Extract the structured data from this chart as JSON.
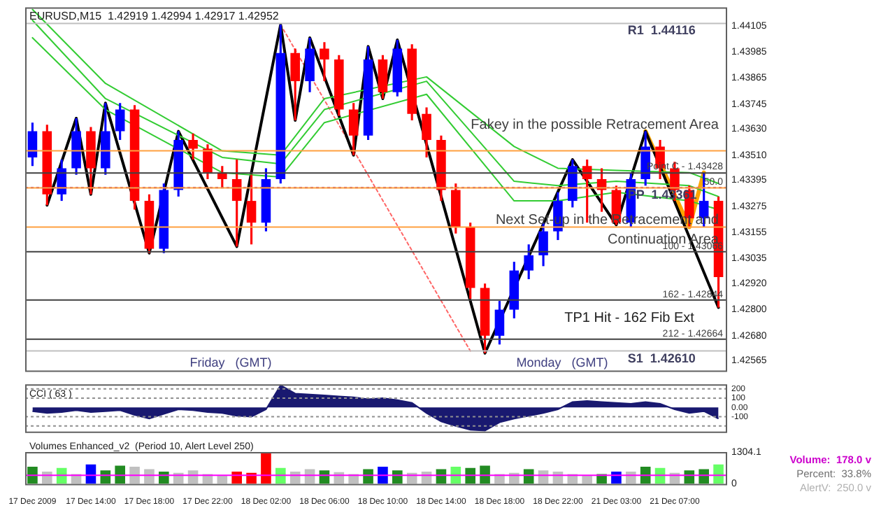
{
  "chart_data": [
    {
      "type": "candlestick",
      "title": "EURUSD,M15  1.42919 1.42994 1.42917 1.42952",
      "categories": [
        null,
        null,
        null,
        null,
        null,
        null,
        null,
        null,
        null,
        null,
        null,
        null,
        null,
        null,
        null,
        null,
        null,
        null,
        null,
        null,
        null,
        null,
        null,
        null,
        null,
        null,
        null,
        null,
        null,
        null,
        null,
        null,
        null,
        null,
        null,
        null,
        null,
        null,
        null,
        null,
        null,
        null,
        null,
        null,
        null,
        null,
        null,
        null
      ],
      "ohlc": [
        [
          1.435,
          1.4366,
          1.4346,
          1.4362
        ],
        [
          1.4362,
          1.4365,
          1.4328,
          1.4333
        ],
        [
          1.4333,
          1.4349,
          1.433,
          1.4345
        ],
        [
          1.4345,
          1.4368,
          1.4342,
          1.4362
        ],
        [
          1.4362,
          1.4364,
          1.4333,
          1.4345
        ],
        [
          1.4345,
          1.4375,
          1.4342,
          1.4362
        ],
        [
          1.4362,
          1.4375,
          1.4358,
          1.4372
        ],
        [
          1.4372,
          1.4374,
          1.4326,
          1.433
        ],
        [
          1.433,
          1.4333,
          1.4306,
          1.4308
        ],
        [
          1.4308,
          1.4338,
          1.4306,
          1.4335
        ],
        [
          1.4335,
          1.4362,
          1.4332,
          1.4358
        ],
        [
          1.4358,
          1.4361,
          1.4349,
          1.4354
        ],
        [
          1.4354,
          1.4356,
          1.434,
          1.4343
        ],
        [
          1.4343,
          1.4346,
          1.4336,
          1.434
        ],
        [
          1.434,
          1.4349,
          1.4309,
          1.433
        ],
        [
          1.433,
          1.4342,
          1.431,
          1.432
        ],
        [
          1.432,
          1.4345,
          1.4316,
          1.434
        ],
        [
          1.434,
          1.4411,
          1.4338,
          1.4398
        ],
        [
          1.4398,
          1.44,
          1.4367,
          1.4385
        ],
        [
          1.4385,
          1.4405,
          1.438,
          1.44
        ],
        [
          1.44,
          1.4403,
          1.4385,
          1.4395
        ],
        [
          1.4395,
          1.4397,
          1.4369,
          1.4372
        ],
        [
          1.4372,
          1.4375,
          1.4351,
          1.436
        ],
        [
          1.436,
          1.4401,
          1.4358,
          1.4395
        ],
        [
          1.4395,
          1.4397,
          1.4377,
          1.438
        ],
        [
          1.438,
          1.4404,
          1.4378,
          1.44
        ],
        [
          1.44,
          1.4402,
          1.4367,
          1.437
        ],
        [
          1.437,
          1.4373,
          1.435,
          1.4358
        ],
        [
          1.4358,
          1.436,
          1.433,
          1.4335
        ],
        [
          1.4335,
          1.4338,
          1.4315,
          1.4318
        ],
        [
          1.4318,
          1.432,
          1.4285,
          1.429
        ],
        [
          1.429,
          1.4292,
          1.426,
          1.4268
        ],
        [
          1.4268,
          1.4284,
          1.4264,
          1.428
        ],
        [
          1.428,
          1.4302,
          1.4276,
          1.4298
        ],
        [
          1.4298,
          1.431,
          1.4294,
          1.4305
        ],
        [
          1.4305,
          1.432,
          1.43,
          1.4316
        ],
        [
          1.4316,
          1.4334,
          1.4312,
          1.433
        ],
        [
          1.433,
          1.4349,
          1.4327,
          1.4346
        ],
        [
          1.4346,
          1.4349,
          1.432,
          1.434
        ],
        [
          1.434,
          1.4345,
          1.4325,
          1.4335
        ],
        [
          1.4335,
          1.4337,
          1.4319,
          1.432
        ],
        [
          1.432,
          1.4343,
          1.4318,
          1.434
        ],
        [
          1.434,
          1.4362,
          1.4337,
          1.4355
        ],
        [
          1.4355,
          1.4358,
          1.434,
          1.4345
        ],
        [
          1.4345,
          1.4348,
          1.433,
          1.4335
        ],
        [
          1.4335,
          1.4337,
          1.4318,
          1.4322
        ],
        [
          1.4322,
          1.4343,
          1.4318,
          1.433
        ],
        [
          1.433,
          1.4332,
          1.4281,
          1.4295
        ]
      ],
      "colors": [
        "#0000ff",
        "#ff0000",
        "#0000ff",
        "#0000ff",
        "#ff0000",
        "#0000ff",
        "#0000ff",
        "#ff0000",
        "#ff0000",
        "#0000ff",
        "#0000ff",
        "#ff0000",
        "#ff0000",
        "#ff0000",
        "#ff0000",
        "#ff0000",
        "#0000ff",
        "#0000ff",
        "#ff0000",
        "#0000ff",
        "#ff0000",
        "#ff0000",
        "#ff0000",
        "#0000ff",
        "#ff0000",
        "#0000ff",
        "#ff0000",
        "#ff0000",
        "#ff0000",
        "#ff0000",
        "#ff0000",
        "#ff0000",
        "#0000ff",
        "#0000ff",
        "#0000ff",
        "#0000ff",
        "#0000ff",
        "#0000ff",
        "#ff0000",
        "#ff0000",
        "#ff0000",
        "#0000ff",
        "#0000ff",
        "#ff0000",
        "#ff0000",
        "#ff0000",
        "#0000ff",
        "#ff0000"
      ],
      "series": [
        {
          "type": "line",
          "color": "#33cc33",
          "values": [
            1.4418,
            null,
            null,
            null,
            null,
            1.4384,
            null,
            null,
            null,
            null,
            null,
            null,
            null,
            1.4353,
            null,
            null,
            null,
            1.4351,
            null,
            null,
            1.4377,
            null,
            null,
            null,
            null,
            null,
            null,
            1.4387,
            null,
            null,
            null,
            null,
            null,
            1.4355,
            null,
            null,
            1.4345,
            null,
            null,
            null,
            1.4344,
            null,
            null,
            null,
            null,
            1.4343,
            null,
            1.4338
          ]
        },
        {
          "type": "line",
          "color": "#33cc33",
          "values": [
            1.4413,
            null,
            null,
            null,
            null,
            1.4377,
            null,
            null,
            null,
            null,
            null,
            null,
            null,
            1.435,
            null,
            null,
            null,
            1.4347,
            null,
            null,
            1.4372,
            null,
            null,
            null,
            null,
            null,
            null,
            1.4385,
            null,
            null,
            null,
            null,
            null,
            1.4339,
            null,
            null,
            1.4337,
            null,
            null,
            null,
            1.4339,
            null,
            null,
            null,
            null,
            1.4337,
            null,
            1.4332
          ]
        },
        {
          "type": "line",
          "color": "#33cc33",
          "values": [
            1.4405,
            null,
            null,
            null,
            null,
            1.4372,
            null,
            null,
            null,
            null,
            null,
            null,
            null,
            1.4343,
            null,
            null,
            null,
            1.4341,
            null,
            null,
            1.4366,
            null,
            null,
            null,
            null,
            null,
            null,
            1.4379,
            null,
            null,
            null,
            null,
            null,
            1.433,
            null,
            null,
            1.433,
            null,
            null,
            null,
            1.4334,
            null,
            null,
            null,
            null,
            1.433,
            null,
            1.4326
          ]
        },
        {
          "type": "line",
          "color": "#000000",
          "values": [
            null,
            1.4328,
            null,
            1.4368,
            1.4333,
            1.4375,
            null,
            null,
            1.4306,
            null,
            1.4362,
            null,
            null,
            null,
            1.4309,
            null,
            null,
            1.4411,
            1.4367,
            1.4405,
            null,
            null,
            1.4351,
            1.4401,
            1.4377,
            1.4404,
            null,
            null,
            null,
            null,
            null,
            1.426,
            null,
            null,
            null,
            null,
            null,
            1.4349,
            null,
            null,
            1.4319,
            null,
            1.4362,
            null,
            null,
            null,
            null,
            1.4281
          ]
        },
        {
          "type": "line",
          "color": "#ffa500",
          "values": [
            null,
            null,
            null,
            null,
            null,
            null,
            null,
            null,
            null,
            null,
            null,
            null,
            null,
            null,
            null,
            null,
            null,
            null,
            null,
            null,
            null,
            null,
            null,
            null,
            null,
            null,
            null,
            null,
            null,
            null,
            null,
            null,
            null,
            null,
            null,
            null,
            null,
            null,
            null,
            null,
            null,
            null,
            1.4362,
            null,
            null,
            1.4318,
            1.4343,
            null
          ]
        },
        {
          "type": "line",
          "color": "#ff6666",
          "line_style": "dotted",
          "values": [
            null,
            null,
            null,
            null,
            null,
            null,
            null,
            null,
            null,
            null,
            null,
            null,
            null,
            null,
            null,
            null,
            null,
            1.4411,
            null,
            null,
            null,
            null,
            null,
            null,
            null,
            null,
            null,
            null,
            null,
            null,
            1.4261,
            null,
            null,
            null,
            null,
            null,
            null,
            null,
            null,
            null,
            null,
            null,
            null,
            null,
            null,
            null,
            null,
            null
          ]
        }
      ],
      "ylim": [
        1.4252,
        1.4419
      ],
      "yticks": [
        1.44105,
        1.43985,
        1.43865,
        1.43745,
        {
          "value": 1.4363,
          "label": "1.43630"
        },
        {
          "value": 1.4351,
          "label": "1.43510"
        },
        1.43395,
        1.43275,
        1.43155,
        1.43035,
        {
          "value": 1.4292,
          "label": "1.42920"
        },
        {
          "value": 1.428,
          "label": "1.42800"
        },
        {
          "value": 1.4268,
          "label": "1.42680"
        },
        1.42565
      ],
      "tick_labels": "y",
      "ref_lines": [
        {
          "axis": "y",
          "value": 1.44116,
          "label": "R1  1.44116",
          "color": "#c0c0c0"
        },
        {
          "axis": "y",
          "value": 1.4261,
          "label": "S1  1.42610",
          "color": "#c0c0c0"
        },
        {
          "axis": "y",
          "value": 1.43361,
          "label": "PP  1.43361",
          "color": "#800080",
          "line_style": "dotted"
        },
        {
          "axis": "y",
          "value": 1.43428,
          "label": "Point C - 1.43428",
          "color": "#404040"
        },
        {
          "axis": "y",
          "value": 1.43066,
          "color": "#404040"
        },
        {
          "axis": "y",
          "value": 1.42844,
          "color": "#404040"
        },
        {
          "axis": "y",
          "value": 1.42664,
          "color": "#404040"
        },
        {
          "axis": "y",
          "value": 1.4353,
          "color": "#ffa040"
        },
        {
          "axis": "y",
          "value": 1.4336,
          "color": "#ffa040"
        },
        {
          "axis": "y",
          "value": 1.4318,
          "color": "#ffa040"
        }
      ],
      "annotations": [
        "Fakey in the possible Retracement Area",
        "Next Set-up in the Retracement and Continuation Area",
        "TP1 Hit - 162 Fib Ext",
        "Friday",
        "(GMT)",
        "Monday",
        "(GMT)",
        {
          "text": "100 - 1.43066",
          "y": 1.43066
        },
        {
          "text": "162 - 1.42844",
          "y": 1.42844
        },
        {
          "text": "212 - 1.42664",
          "y": 1.42664
        },
        {
          "text": "50.0",
          "y": 1.4336
        }
      ]
    },
    {
      "type": "area",
      "title": "CCI ( 63 )",
      "categories": [
        null,
        null,
        null,
        null,
        null,
        null,
        null,
        null,
        null,
        null,
        null,
        null,
        null,
        null,
        null,
        null,
        null,
        null,
        null,
        null,
        null,
        null,
        null,
        null,
        null,
        null,
        null,
        null,
        null,
        null,
        null,
        null,
        null,
        null,
        null,
        null,
        null,
        null,
        null,
        null,
        null,
        null,
        null,
        null,
        null,
        null,
        null,
        null
      ],
      "values": [
        -40,
        -60,
        -50,
        -30,
        -50,
        -40,
        -30,
        -80,
        -120,
        -70,
        -20,
        -30,
        -50,
        -60,
        -90,
        -100,
        -20,
        240,
        150,
        140,
        130,
        120,
        110,
        90,
        100,
        80,
        50,
        -60,
        -150,
        -200,
        -240,
        -250,
        -160,
        -120,
        -90,
        -60,
        -20,
        60,
        70,
        60,
        50,
        40,
        60,
        40,
        -20,
        -60,
        -40,
        -120
      ],
      "color": "#191970",
      "ylim": [
        -260,
        250
      ],
      "yticks": [
        200,
        100,
        {
          "value": 0,
          "label": "0.00"
        },
        -100
      ],
      "tick_labels": "y",
      "ref_lines": [
        {
          "axis": "y",
          "value": 200,
          "color": "#909090",
          "line_style": "dotted"
        },
        {
          "axis": "y",
          "value": 100,
          "color": "#909090",
          "line_style": "dotted"
        },
        {
          "axis": "y",
          "value": -100,
          "color": "#909090",
          "line_style": "dotted"
        },
        {
          "axis": "y",
          "value": -200,
          "color": "#909090",
          "line_style": "dotted"
        }
      ]
    },
    {
      "type": "bar",
      "title": "Volumes Enhanced_v2  (Period 10, Alert Level 250)",
      "categories": [
        "17 Dec 2009",
        null,
        null,
        null,
        "17 Dec 14:00",
        null,
        null,
        null,
        "17 Dec 18:00",
        null,
        null,
        null,
        "17 Dec 22:00",
        null,
        null,
        null,
        "18 Dec 02:00",
        null,
        null,
        null,
        "18 Dec 06:00",
        null,
        null,
        null,
        "18 Dec 10:00",
        null,
        null,
        null,
        "18 Dec 14:00",
        null,
        null,
        null,
        "18 Dec 18:00",
        null,
        null,
        null,
        "18 Dec 22:00",
        null,
        null,
        null,
        "21 Dec 03:00",
        null,
        null,
        null,
        "21 Dec 07:00",
        null,
        null,
        null
      ],
      "values": [
        700,
        500,
        650,
        400,
        800,
        550,
        750,
        700,
        600,
        500,
        450,
        550,
        400,
        350,
        500,
        450,
        1250,
        650,
        500,
        600,
        550,
        480,
        400,
        600,
        700,
        550,
        450,
        500,
        600,
        700,
        650,
        750,
        400,
        450,
        600,
        550,
        500,
        400,
        350,
        400,
        500,
        500,
        700,
        650,
        450,
        550,
        600,
        800
      ],
      "colors": [
        "#228b22",
        "#c0c0c0",
        "#66ff66",
        "#c0c0c0",
        "#0000ff",
        "#228b22",
        "#228b22",
        "#c0c0c0",
        "#c0c0c0",
        "#228b22",
        "#c0c0c0",
        "#c0c0c0",
        "#c0c0c0",
        "#c0c0c0",
        "#ff0000",
        "#ff0000",
        "#ff0000",
        "#66ff66",
        "#c0c0c0",
        "#c0c0c0",
        "#228b22",
        "#c0c0c0",
        "#c0c0c0",
        "#228b22",
        "#0000ff",
        "#228b22",
        "#c0c0c0",
        "#c0c0c0",
        "#228b22",
        "#66ff66",
        "#228b22",
        "#228b22",
        "#c0c0c0",
        "#c0c0c0",
        "#228b22",
        "#c0c0c0",
        "#c0c0c0",
        "#c0c0c0",
        "#c0c0c0",
        "#228b22",
        "#0000ff",
        "#c0c0c0",
        "#228b22",
        "#66ff66",
        "#c0c0c0",
        "#228b22",
        "#228b22",
        "#66ff66"
      ],
      "ylim": [
        0,
        1304.1
      ],
      "yticks": [
        1304.1,
        0
      ],
      "ref_lines": [
        {
          "axis": "y",
          "value": 350,
          "color": "#ff00ff"
        }
      ],
      "annotations": [
        "Volume:  178.0 v",
        "Percent:  33.8%",
        "AlertV:  250.0 v"
      ]
    }
  ]
}
